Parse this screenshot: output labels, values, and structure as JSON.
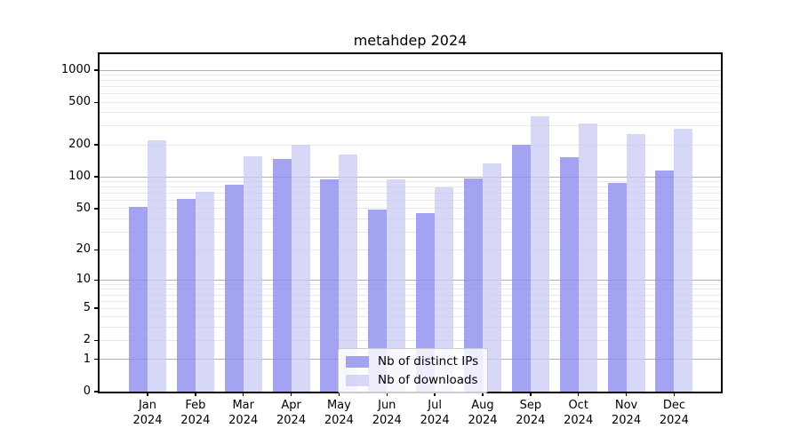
{
  "title": "metahdep 2024",
  "chart_data": {
    "type": "bar",
    "title": "metahdep 2024",
    "categories": [
      "Jan",
      "Feb",
      "Mar",
      "Apr",
      "May",
      "Jun",
      "Jul",
      "Aug",
      "Sep",
      "Oct",
      "Nov",
      "Dec"
    ],
    "x_tick_second_line": "2024",
    "series": [
      {
        "name": "Nb of distinct IPs",
        "color": "rgba(140,140,238,0.8)",
        "values": [
          52,
          62,
          85,
          147,
          95,
          49,
          45,
          97,
          200,
          152,
          88,
          115
        ]
      },
      {
        "name": "Nb of downloads",
        "color": "rgba(202,202,245,0.75)",
        "values": [
          220,
          72,
          156,
          200,
          163,
          94,
          79,
          135,
          370,
          315,
          250,
          285
        ]
      }
    ],
    "xlabel": "",
    "ylabel": "",
    "y_scale": "log1p",
    "y_tick_labels": [
      0,
      1,
      2,
      5,
      10,
      20,
      50,
      100,
      200,
      500,
      1000
    ],
    "y_major_gridlines": [
      1,
      10,
      100,
      1000
    ],
    "ylim": [
      0,
      1400
    ],
    "grid": true,
    "legend_position": "lower center, inside plot"
  },
  "legend": {
    "items": [
      {
        "label": "Nb of distinct IPs",
        "color": "rgba(140,140,238,0.8)"
      },
      {
        "label": "Nb of downloads",
        "color": "rgba(202,202,245,0.75)"
      }
    ]
  }
}
